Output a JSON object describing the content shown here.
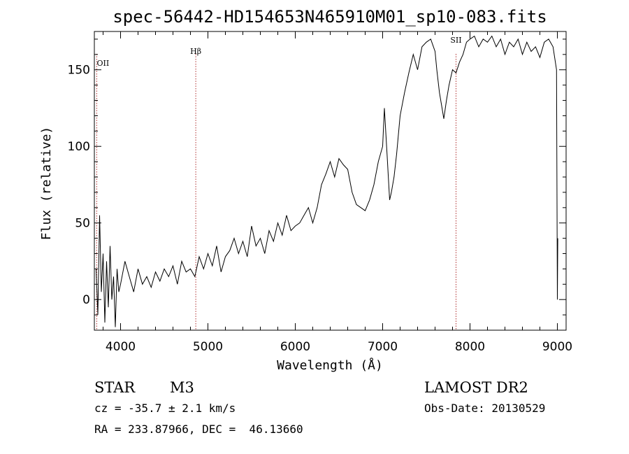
{
  "chart_data": {
    "type": "line",
    "title": "spec-56442-HD154653N465910M01_sp10-083.fits",
    "xlabel": "Wavelength (Å)",
    "ylabel": "Flux (relative)",
    "xlim": [
      3700,
      9100
    ],
    "ylim": [
      -20,
      175
    ],
    "xticks": [
      4000,
      5000,
      6000,
      7000,
      8000,
      9000
    ],
    "yticks": [
      0,
      50,
      100,
      150
    ],
    "grid": false,
    "line_markers": [
      {
        "label": "OII",
        "x": 3727
      },
      {
        "label": "Hβ",
        "x": 4861
      },
      {
        "label": "SII",
        "x": 7840
      }
    ],
    "series": [
      {
        "x": [
          3720,
          3740,
          3760,
          3780,
          3800,
          3820,
          3840,
          3860,
          3880,
          3900,
          3920,
          3940,
          3960,
          3980,
          4000,
          4050,
          4100,
          4150,
          4200,
          4250,
          4300,
          4350,
          4400,
          4450,
          4500,
          4550,
          4600,
          4650,
          4700,
          4750,
          4800,
          4850,
          4900,
          4950,
          5000,
          5050,
          5100,
          5150,
          5200,
          5250,
          5300,
          5350,
          5400,
          5450,
          5500,
          5550,
          5600,
          5650,
          5700,
          5750,
          5800,
          5850,
          5900,
          5950,
          6000,
          6050,
          6100,
          6150,
          6200,
          6250,
          6300,
          6350,
          6400,
          6450,
          6500,
          6550,
          6600,
          6650,
          6700,
          6750,
          6800,
          6850,
          6900,
          6950,
          7000,
          7020,
          7050,
          7080,
          7100,
          7130,
          7160,
          7200,
          7250,
          7300,
          7350,
          7400,
          7450,
          7500,
          7550,
          7600,
          7620,
          7650,
          7680,
          7700,
          7730,
          7760,
          7800,
          7840,
          7880,
          7920,
          7960,
          8000,
          8050,
          8100,
          8150,
          8200,
          8250,
          8300,
          8350,
          8400,
          8450,
          8500,
          8550,
          8600,
          8650,
          8700,
          8750,
          8800,
          8850,
          8900,
          8950,
          8990,
          9000,
          9005
        ],
        "y": [
          20,
          -10,
          55,
          5,
          30,
          -15,
          25,
          -5,
          35,
          0,
          15,
          -18,
          20,
          5,
          10,
          25,
          15,
          5,
          20,
          10,
          15,
          8,
          18,
          12,
          20,
          15,
          22,
          10,
          25,
          18,
          20,
          15,
          28,
          20,
          30,
          22,
          35,
          18,
          28,
          32,
          40,
          30,
          38,
          28,
          48,
          35,
          40,
          30,
          45,
          38,
          50,
          42,
          55,
          45,
          48,
          50,
          55,
          60,
          50,
          60,
          75,
          82,
          90,
          80,
          92,
          88,
          85,
          70,
          62,
          60,
          58,
          65,
          75,
          90,
          100,
          125,
          95,
          65,
          70,
          80,
          95,
          120,
          135,
          148,
          160,
          150,
          165,
          168,
          170,
          162,
          150,
          135,
          125,
          118,
          130,
          140,
          150,
          148,
          155,
          160,
          168,
          170,
          172,
          165,
          170,
          168,
          172,
          165,
          170,
          160,
          168,
          165,
          170,
          160,
          168,
          162,
          165,
          158,
          168,
          170,
          165,
          150,
          0,
          40
        ]
      }
    ]
  },
  "info": {
    "object_type": "STAR",
    "subclass": "M3",
    "survey": "LAMOST DR2",
    "cz": "cz = -35.7 ± 2.1 km/s",
    "obs_date": "Obs-Date: 20130529",
    "coords": "RA = 233.87966, DEC =  46.13660"
  }
}
